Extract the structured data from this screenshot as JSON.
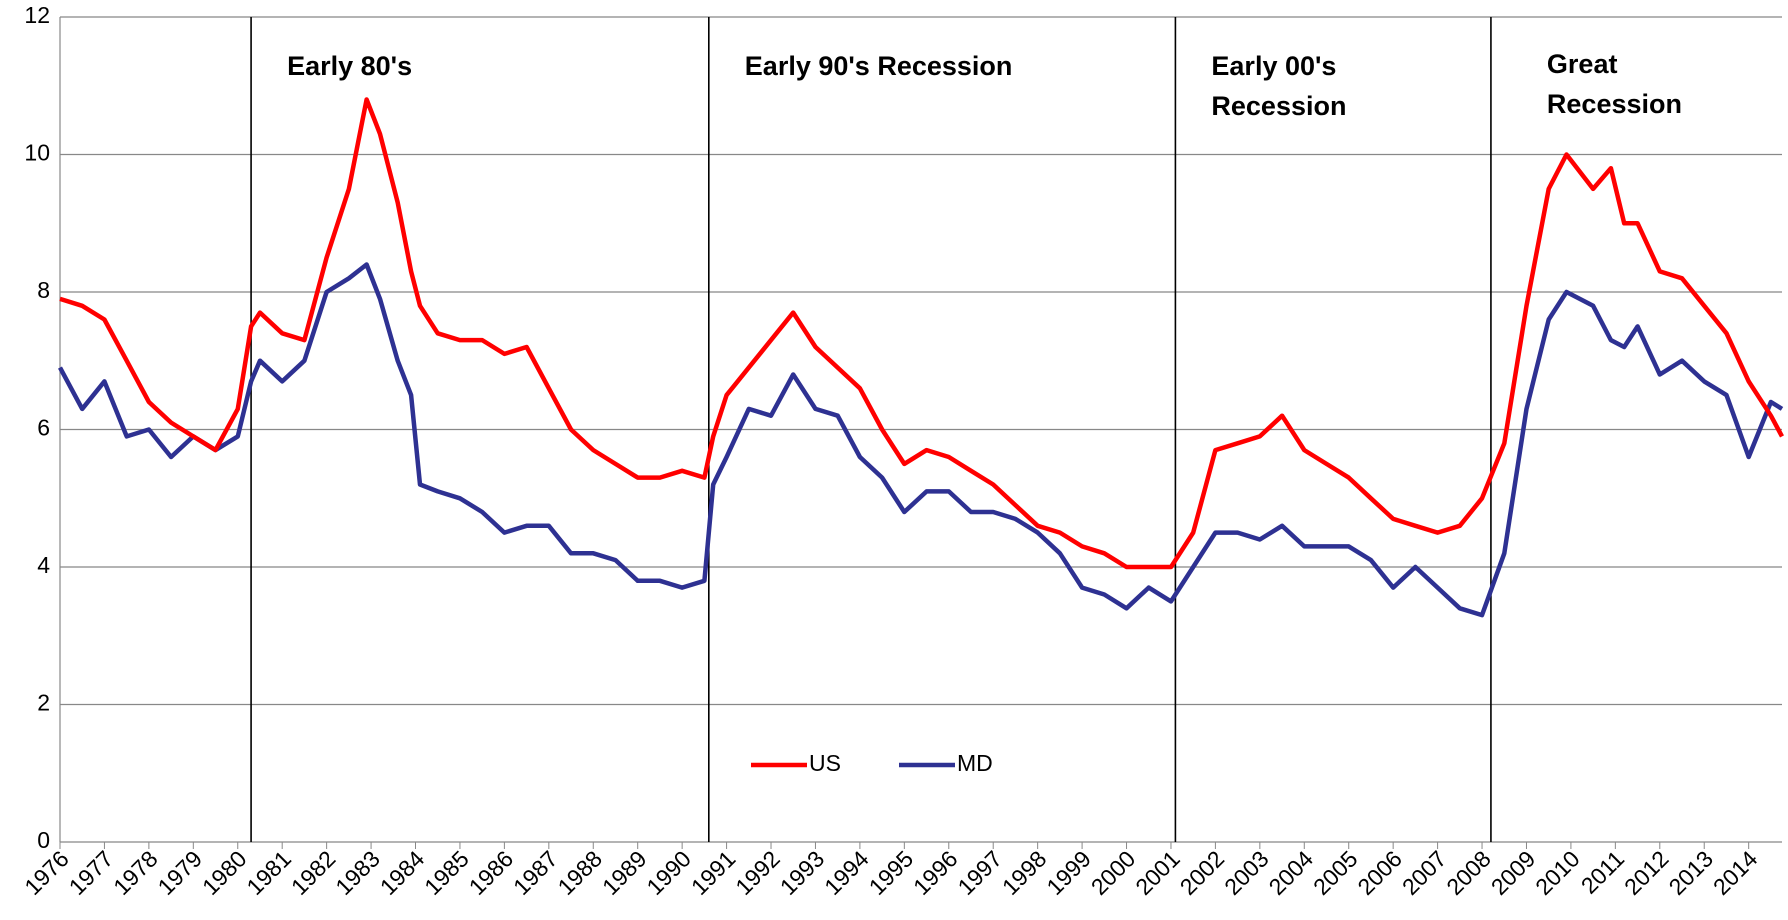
{
  "chart_data": {
    "type": "line",
    "x": [
      1976,
      1976.5,
      1977,
      1977.5,
      1978,
      1978.5,
      1979,
      1979.5,
      1980,
      1980.3,
      1980.5,
      1981,
      1981.5,
      1982,
      1982.5,
      1982.9,
      1983.2,
      1983.6,
      1983.9,
      1984.1,
      1984.5,
      1985,
      1985.5,
      1986,
      1986.5,
      1987,
      1987.5,
      1988,
      1988.5,
      1989,
      1989.5,
      1990,
      1990.5,
      1990.7,
      1991,
      1991.5,
      1992,
      1992.5,
      1993,
      1993.5,
      1994,
      1994.5,
      1995,
      1995.5,
      1996,
      1996.5,
      1997,
      1997.5,
      1998,
      1998.5,
      1999,
      1999.5,
      2000,
      2000.5,
      2001,
      2001.5,
      2002,
      2002.5,
      2003,
      2003.5,
      2004,
      2004.5,
      2005,
      2005.5,
      2006,
      2006.5,
      2007,
      2007.5,
      2008,
      2008.5,
      2009,
      2009.5,
      2009.9,
      2010.5,
      2010.9,
      2011.2,
      2011.5,
      2012,
      2012.5,
      2013,
      2013.5,
      2014,
      2014.5,
      2014.75
    ],
    "series": [
      {
        "name": "US",
        "color": "#ff0000",
        "values": [
          7.9,
          7.8,
          7.6,
          7.0,
          6.4,
          6.1,
          5.9,
          5.7,
          6.3,
          7.5,
          7.7,
          7.4,
          7.3,
          8.5,
          9.5,
          10.8,
          10.3,
          9.3,
          8.3,
          7.8,
          7.4,
          7.3,
          7.3,
          7.1,
          7.2,
          6.6,
          6.0,
          5.7,
          5.5,
          5.3,
          5.3,
          5.4,
          5.3,
          5.9,
          6.5,
          6.9,
          7.3,
          7.7,
          7.2,
          6.9,
          6.6,
          6.0,
          5.5,
          5.7,
          5.6,
          5.4,
          5.2,
          4.9,
          4.6,
          4.5,
          4.3,
          4.2,
          4.0,
          4.0,
          4.0,
          4.5,
          5.7,
          5.8,
          5.9,
          6.2,
          5.7,
          5.5,
          5.3,
          5.0,
          4.7,
          4.6,
          4.5,
          4.6,
          5.0,
          5.8,
          7.8,
          9.5,
          10.0,
          9.5,
          9.8,
          9.0,
          9.0,
          8.3,
          8.2,
          7.8,
          7.4,
          6.7,
          6.2,
          5.9
        ]
      },
      {
        "name": "MD",
        "color": "#2e3192",
        "values": [
          6.9,
          6.3,
          6.7,
          5.9,
          6.0,
          5.6,
          5.9,
          5.7,
          5.9,
          6.7,
          7.0,
          6.7,
          7.0,
          8.0,
          8.2,
          8.4,
          7.9,
          7.0,
          6.5,
          5.2,
          5.1,
          5.0,
          4.8,
          4.5,
          4.6,
          4.6,
          4.2,
          4.2,
          4.1,
          3.8,
          3.8,
          3.7,
          3.8,
          5.2,
          5.6,
          6.3,
          6.2,
          6.8,
          6.3,
          6.2,
          5.6,
          5.3,
          4.8,
          5.1,
          5.1,
          4.8,
          4.8,
          4.7,
          4.5,
          4.2,
          3.7,
          3.6,
          3.4,
          3.7,
          3.5,
          4.0,
          4.5,
          4.5,
          4.4,
          4.6,
          4.3,
          4.3,
          4.3,
          4.1,
          3.7,
          4.0,
          3.7,
          3.4,
          3.3,
          4.2,
          6.3,
          7.6,
          8.0,
          7.8,
          7.3,
          7.2,
          7.5,
          6.8,
          7.0,
          6.7,
          6.5,
          5.6,
          6.4,
          6.3
        ]
      }
    ],
    "recessions": [
      {
        "x": 1980.3,
        "label": [
          "Early 80's"
        ]
      },
      {
        "x": 1990.6,
        "label": [
          "Early 90's Recession"
        ]
      },
      {
        "x": 2001.1,
        "label": [
          "Early 00's",
          "Recession"
        ]
      },
      {
        "x": 2008.2,
        "label": [
          "Great",
          "Recession"
        ]
      }
    ],
    "xlim": [
      1976,
      2014.75
    ],
    "xticks": [
      1976,
      1977,
      1978,
      1979,
      1980,
      1981,
      1982,
      1983,
      1984,
      1985,
      1986,
      1987,
      1988,
      1989,
      1990,
      1991,
      1992,
      1993,
      1994,
      1995,
      1996,
      1997,
      1998,
      1999,
      2000,
      2001,
      2002,
      2003,
      2004,
      2005,
      2006,
      2007,
      2008,
      2009,
      2010,
      2011,
      2012,
      2013,
      2014
    ],
    "ylim": [
      0,
      12
    ],
    "yticks": [
      0,
      2,
      4,
      6,
      8,
      10,
      12
    ],
    "grid": true,
    "legend": "bottom-center"
  }
}
